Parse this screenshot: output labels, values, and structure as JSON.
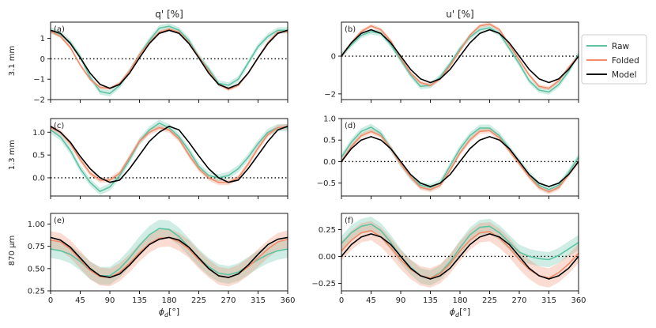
{
  "chart_data": {
    "type": "line",
    "col_titles": [
      "q' [%]",
      "u' [%]"
    ],
    "row_labels": [
      "3.1 mm",
      "1.3 mm",
      "870 μm"
    ],
    "xlabel_main": "ϕ",
    "xlabel_sub": "d",
    "xlabel_unit": "[°]",
    "xlim": [
      0,
      360
    ],
    "xticks": [
      0,
      45,
      90,
      135,
      180,
      225,
      270,
      315,
      360
    ],
    "legend": {
      "placement": "right",
      "entries": [
        {
          "name": "Raw",
          "color": "#5fc3a4"
        },
        {
          "name": "Folded",
          "color": "#f28c6a"
        },
        {
          "name": "Model",
          "color": "#000000"
        }
      ]
    },
    "reference_line": {
      "y": 0,
      "style": "dotted",
      "color": "#000000"
    },
    "x": [
      0,
      15,
      30,
      45,
      60,
      75,
      90,
      105,
      120,
      135,
      150,
      165,
      180,
      195,
      210,
      225,
      240,
      255,
      270,
      285,
      300,
      315,
      330,
      345,
      360
    ],
    "panels": [
      {
        "tag": "(a)",
        "row": 0,
        "col": 0,
        "ylim": [
          -2.0,
          1.8
        ],
        "yticks": [
          -2,
          -1,
          0,
          1
        ],
        "ytick_labels": [
          "−2",
          "−1",
          "0",
          "1"
        ],
        "raw": {
          "values": [
            1.4,
            1.2,
            0.8,
            0.1,
            -0.9,
            -1.6,
            -1.7,
            -1.3,
            -0.6,
            0.2,
            0.9,
            1.5,
            1.6,
            1.4,
            0.9,
            0.1,
            -0.5,
            -1.2,
            -1.3,
            -1.0,
            -0.2,
            0.6,
            1.1,
            1.4,
            1.4
          ],
          "band": 0.15
        },
        "folded": {
          "values": [
            1.35,
            1.1,
            0.55,
            -0.3,
            -1.0,
            -1.4,
            -1.45,
            -1.2,
            -0.6,
            0.2,
            0.8,
            1.3,
            1.45,
            1.3,
            0.8,
            0.1,
            -0.6,
            -1.25,
            -1.5,
            -1.3,
            -0.7,
            0.05,
            0.8,
            1.3,
            1.35
          ],
          "band": 0.08
        },
        "model": {
          "values": [
            1.4,
            1.25,
            0.75,
            0.05,
            -0.7,
            -1.25,
            -1.45,
            -1.25,
            -0.7,
            0.05,
            0.75,
            1.25,
            1.4,
            1.25,
            0.75,
            0.05,
            -0.7,
            -1.25,
            -1.45,
            -1.25,
            -0.7,
            0.05,
            0.75,
            1.25,
            1.4
          ]
        }
      },
      {
        "tag": "(b)",
        "row": 0,
        "col": 1,
        "ylim": [
          -2.3,
          1.8
        ],
        "yticks": [
          -2,
          0
        ],
        "ytick_labels": [
          "−2",
          "0"
        ],
        "raw": {
          "values": [
            0.05,
            0.6,
            1.1,
            1.3,
            1.2,
            0.6,
            -0.2,
            -1.0,
            -1.6,
            -1.55,
            -1.1,
            -0.4,
            0.4,
            1.0,
            1.4,
            1.5,
            1.2,
            0.4,
            -0.4,
            -1.3,
            -1.8,
            -1.9,
            -1.5,
            -0.8,
            0.1
          ],
          "band": 0.15
        },
        "folded": {
          "values": [
            0.0,
            0.7,
            1.3,
            1.6,
            1.4,
            0.8,
            -0.1,
            -0.9,
            -1.4,
            -1.55,
            -1.2,
            -0.5,
            0.3,
            1.1,
            1.6,
            1.7,
            1.4,
            0.6,
            -0.2,
            -1.0,
            -1.6,
            -1.7,
            -1.3,
            -0.6,
            0.0
          ],
          "band": 0.1
        },
        "model": {
          "values": [
            0.0,
            0.7,
            1.2,
            1.4,
            1.2,
            0.7,
            0.0,
            -0.7,
            -1.2,
            -1.4,
            -1.2,
            -0.7,
            0.0,
            0.7,
            1.2,
            1.4,
            1.2,
            0.7,
            0.0,
            -0.7,
            -1.2,
            -1.4,
            -1.2,
            -0.7,
            0.0
          ]
        }
      },
      {
        "tag": "(c)",
        "row": 1,
        "col": 0,
        "ylim": [
          -0.4,
          1.3
        ],
        "yticks": [
          0.0,
          0.5,
          1.0
        ],
        "ytick_labels": [
          "0.0",
          "0.5",
          "1.0"
        ],
        "raw": {
          "values": [
            1.05,
            0.9,
            0.6,
            0.2,
            -0.1,
            -0.3,
            -0.2,
            0.05,
            0.4,
            0.8,
            1.05,
            1.2,
            1.1,
            0.9,
            0.6,
            0.25,
            0.05,
            0.0,
            0.05,
            0.2,
            0.45,
            0.75,
            1.0,
            1.1,
            1.1
          ],
          "band": 0.08
        },
        "folded": {
          "values": [
            1.1,
            1.0,
            0.75,
            0.4,
            0.1,
            -0.05,
            -0.05,
            0.1,
            0.45,
            0.8,
            1.0,
            1.1,
            1.05,
            0.85,
            0.5,
            0.2,
            0.0,
            -0.1,
            -0.1,
            0.0,
            0.3,
            0.65,
            0.95,
            1.1,
            1.12
          ],
          "band": 0.06
        },
        "model": {
          "values": [
            1.13,
            1.0,
            0.78,
            0.47,
            0.2,
            0.0,
            -0.1,
            -0.05,
            0.2,
            0.5,
            0.8,
            1.0,
            1.13,
            1.05,
            0.78,
            0.48,
            0.2,
            0.0,
            -0.1,
            -0.05,
            0.2,
            0.5,
            0.8,
            1.05,
            1.13
          ]
        }
      },
      {
        "tag": "(d)",
        "row": 1,
        "col": 1,
        "ylim": [
          -0.8,
          1.0
        ],
        "yticks": [
          -0.5,
          0.0,
          0.5,
          1.0
        ],
        "ytick_labels": [
          "−0.5",
          "0.0",
          "0.5",
          "1.0"
        ],
        "raw": {
          "values": [
            0.1,
            0.45,
            0.7,
            0.8,
            0.65,
            0.3,
            -0.05,
            -0.35,
            -0.55,
            -0.6,
            -0.5,
            -0.1,
            0.3,
            0.6,
            0.78,
            0.78,
            0.6,
            0.3,
            0.0,
            -0.3,
            -0.55,
            -0.65,
            -0.55,
            -0.25,
            0.1
          ],
          "band": 0.08
        },
        "folded": {
          "values": [
            0.0,
            0.35,
            0.6,
            0.7,
            0.6,
            0.3,
            -0.05,
            -0.35,
            -0.6,
            -0.65,
            -0.55,
            -0.2,
            0.2,
            0.5,
            0.7,
            0.72,
            0.55,
            0.25,
            -0.05,
            -0.35,
            -0.6,
            -0.7,
            -0.6,
            -0.3,
            0.0
          ],
          "band": 0.06
        },
        "model": {
          "values": [
            0.0,
            0.3,
            0.5,
            0.58,
            0.5,
            0.3,
            0.0,
            -0.3,
            -0.5,
            -0.58,
            -0.5,
            -0.3,
            0.0,
            0.3,
            0.5,
            0.58,
            0.5,
            0.3,
            0.0,
            -0.3,
            -0.5,
            -0.58,
            -0.5,
            -0.3,
            0.0
          ]
        }
      },
      {
        "tag": "(e)",
        "row": 2,
        "col": 0,
        "ylim": [
          0.25,
          1.12
        ],
        "yticks": [
          0.25,
          0.5,
          0.75,
          1.0
        ],
        "ytick_labels": [
          "0.25",
          "0.50",
          "0.75",
          "1.00"
        ],
        "raw": {
          "values": [
            0.72,
            0.7,
            0.66,
            0.58,
            0.48,
            0.42,
            0.42,
            0.5,
            0.62,
            0.76,
            0.88,
            0.95,
            0.94,
            0.86,
            0.74,
            0.62,
            0.52,
            0.45,
            0.43,
            0.46,
            0.53,
            0.6,
            0.66,
            0.7,
            0.72
          ],
          "band": 0.1
        },
        "folded": {
          "values": [
            0.82,
            0.8,
            0.72,
            0.6,
            0.48,
            0.41,
            0.4,
            0.46,
            0.56,
            0.68,
            0.78,
            0.84,
            0.85,
            0.8,
            0.72,
            0.6,
            0.5,
            0.42,
            0.4,
            0.44,
            0.52,
            0.62,
            0.72,
            0.8,
            0.83
          ],
          "band": 0.1
        },
        "model": {
          "values": [
            0.85,
            0.82,
            0.74,
            0.62,
            0.5,
            0.42,
            0.4,
            0.44,
            0.54,
            0.66,
            0.77,
            0.83,
            0.85,
            0.82,
            0.74,
            0.62,
            0.5,
            0.42,
            0.4,
            0.44,
            0.54,
            0.66,
            0.77,
            0.83,
            0.85
          ]
        }
      },
      {
        "tag": "(f)",
        "row": 2,
        "col": 1,
        "ylim": [
          -0.32,
          0.4
        ],
        "yticks": [
          -0.25,
          0.0,
          0.25
        ],
        "ytick_labels": [
          "−0.25",
          "0.00",
          "0.25"
        ],
        "raw": {
          "values": [
            0.12,
            0.22,
            0.28,
            0.3,
            0.24,
            0.13,
            0.0,
            -0.1,
            -0.18,
            -0.2,
            -0.15,
            -0.05,
            0.08,
            0.2,
            0.27,
            0.28,
            0.22,
            0.13,
            0.04,
            0.0,
            -0.02,
            -0.03,
            0.01,
            0.07,
            0.13
          ],
          "band": 0.07
        },
        "folded": {
          "values": [
            0.05,
            0.15,
            0.22,
            0.24,
            0.18,
            0.08,
            -0.03,
            -0.12,
            -0.18,
            -0.2,
            -0.16,
            -0.07,
            0.05,
            0.15,
            0.22,
            0.23,
            0.17,
            0.08,
            -0.03,
            -0.12,
            -0.18,
            -0.2,
            -0.15,
            -0.07,
            0.03
          ],
          "band": 0.09
        },
        "model": {
          "values": [
            0.0,
            0.11,
            0.18,
            0.21,
            0.18,
            0.11,
            0.0,
            -0.11,
            -0.18,
            -0.21,
            -0.18,
            -0.11,
            0.0,
            0.11,
            0.18,
            0.21,
            0.18,
            0.11,
            0.0,
            -0.11,
            -0.18,
            -0.21,
            -0.18,
            -0.11,
            0.0
          ]
        }
      }
    ]
  }
}
